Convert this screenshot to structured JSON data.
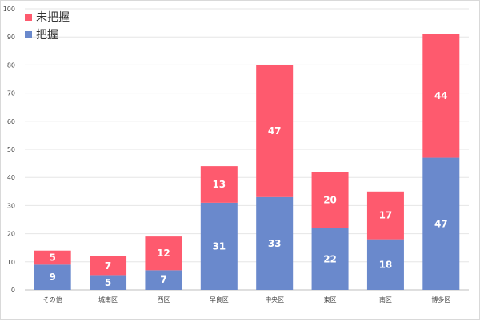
{
  "chart_data": {
    "type": "bar",
    "stacked": true,
    "categories": [
      "その他",
      "城南区",
      "西区",
      "早良区",
      "中央区",
      "東区",
      "南区",
      "博多区"
    ],
    "series": [
      {
        "name": "把握",
        "color": "#6a89cc",
        "values": [
          9,
          5,
          7,
          31,
          33,
          22,
          18,
          47
        ]
      },
      {
        "name": "未把握",
        "color": "#fe5a6e",
        "values": [
          5,
          7,
          12,
          13,
          47,
          20,
          17,
          44
        ]
      }
    ],
    "yticks": [
      0,
      10,
      20,
      30,
      40,
      50,
      60,
      70,
      80,
      90,
      100
    ],
    "ylim": [
      0,
      100
    ],
    "grid": true,
    "legend": {
      "position": "top-left",
      "order": [
        "未把握",
        "把握"
      ]
    },
    "data_labels": true
  }
}
